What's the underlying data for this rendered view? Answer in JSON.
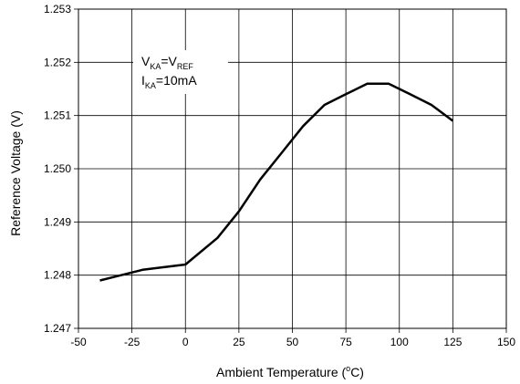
{
  "chart_data": {
    "type": "line",
    "title": "",
    "xlabel": {
      "main": "Ambient Temperature (",
      "sup": "o",
      "unit": "C)"
    },
    "ylabel": "Reference Voltage (V)",
    "xlim": [
      -50,
      150
    ],
    "ylim": [
      1.247,
      1.253
    ],
    "x_ticks": [
      "-50",
      "-25",
      "0",
      "25",
      "50",
      "75",
      "100",
      "125",
      "150"
    ],
    "y_ticks": [
      "1.247",
      "1.248",
      "1.249",
      "1.250",
      "1.251",
      "1.252",
      "1.253"
    ],
    "grid": true,
    "series": [
      {
        "x": [
          -40,
          -20,
          0,
          15,
          25,
          35,
          45,
          55,
          65,
          75,
          85,
          95,
          105,
          115,
          125
        ],
        "y": [
          1.2479,
          1.2481,
          1.2482,
          1.2487,
          1.2492,
          1.2498,
          1.2503,
          1.2508,
          1.2512,
          1.2514,
          1.2516,
          1.2516,
          1.2514,
          1.2512,
          1.2509
        ]
      }
    ],
    "annotation": {
      "line1": {
        "a": "V",
        "a_sub": "KA",
        "b": "=V",
        "b_sub": "REF"
      },
      "line2": {
        "a": "I",
        "a_sub": "KA",
        "b": "=10mA"
      }
    }
  },
  "colors": {
    "line": "#000000",
    "grid": "#000000",
    "background": "#ffffff"
  }
}
